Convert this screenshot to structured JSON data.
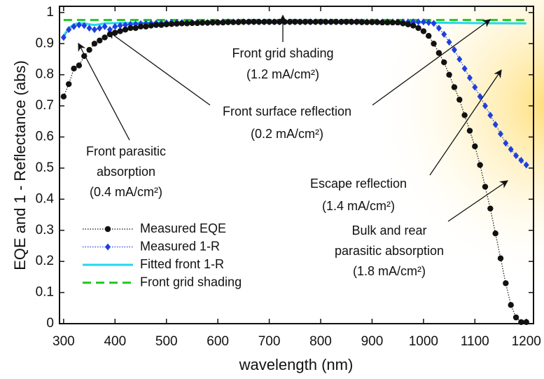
{
  "chart_data": {
    "type": "line",
    "xlabel": "wavelength (nm)",
    "ylabel": "EQE and 1 - Reflectance (abs)",
    "xlim": [
      292,
      1214
    ],
    "ylim": [
      0,
      1.02
    ],
    "xticks": [
      300,
      400,
      500,
      600,
      700,
      800,
      900,
      1000,
      1100,
      1200
    ],
    "yticks": [
      0,
      0.1,
      0.2,
      0.3,
      0.4,
      0.5,
      0.6,
      0.7,
      0.8,
      0.9,
      1
    ],
    "grid": false,
    "legend": "lower left",
    "series": [
      {
        "name": "Measured EQE",
        "color": "#111111",
        "marker": "circle",
        "line_style": "dotted",
        "x": [
          300,
          310,
          320,
          330,
          340,
          350,
          360,
          370,
          380,
          390,
          400,
          410,
          420,
          430,
          440,
          450,
          460,
          470,
          480,
          490,
          500,
          510,
          520,
          530,
          540,
          550,
          560,
          570,
          580,
          590,
          600,
          610,
          620,
          630,
          640,
          650,
          660,
          670,
          680,
          690,
          700,
          710,
          720,
          730,
          740,
          750,
          760,
          770,
          780,
          790,
          800,
          810,
          820,
          830,
          840,
          850,
          860,
          870,
          880,
          890,
          900,
          910,
          920,
          930,
          940,
          950,
          960,
          970,
          980,
          990,
          1000,
          1010,
          1020,
          1030,
          1040,
          1050,
          1060,
          1070,
          1080,
          1090,
          1100,
          1110,
          1120,
          1130,
          1140,
          1150,
          1160,
          1170,
          1180,
          1190,
          1200
        ],
        "values": [
          0.73,
          0.77,
          0.82,
          0.83,
          0.86,
          0.88,
          0.9,
          0.91,
          0.92,
          0.93,
          0.935,
          0.94,
          0.945,
          0.95,
          0.95,
          0.955,
          0.955,
          0.958,
          0.96,
          0.96,
          0.962,
          0.963,
          0.964,
          0.965,
          0.965,
          0.966,
          0.966,
          0.967,
          0.967,
          0.968,
          0.968,
          0.968,
          0.969,
          0.969,
          0.969,
          0.97,
          0.97,
          0.97,
          0.97,
          0.97,
          0.97,
          0.97,
          0.97,
          0.97,
          0.97,
          0.97,
          0.97,
          0.97,
          0.97,
          0.97,
          0.97,
          0.97,
          0.97,
          0.97,
          0.97,
          0.97,
          0.97,
          0.97,
          0.969,
          0.969,
          0.969,
          0.969,
          0.968,
          0.968,
          0.968,
          0.968,
          0.965,
          0.962,
          0.958,
          0.95,
          0.94,
          0.925,
          0.9,
          0.87,
          0.84,
          0.8,
          0.76,
          0.72,
          0.67,
          0.62,
          0.57,
          0.51,
          0.44,
          0.37,
          0.29,
          0.21,
          0.13,
          0.06,
          0.02,
          0.005,
          0.005
        ]
      },
      {
        "name": "Measured 1-R",
        "color": "#1f3fe0",
        "marker": "diamond",
        "line_style": "dotted",
        "x": [
          300,
          310,
          320,
          330,
          340,
          350,
          360,
          370,
          380,
          390,
          400,
          410,
          420,
          430,
          440,
          450,
          460,
          470,
          480,
          490,
          500,
          510,
          520,
          530,
          540,
          550,
          560,
          570,
          580,
          590,
          600,
          610,
          620,
          630,
          640,
          650,
          660,
          670,
          680,
          690,
          700,
          710,
          720,
          730,
          740,
          750,
          760,
          770,
          780,
          790,
          800,
          810,
          820,
          830,
          840,
          850,
          860,
          870,
          880,
          890,
          900,
          910,
          920,
          930,
          940,
          950,
          960,
          970,
          980,
          990,
          1000,
          1010,
          1020,
          1030,
          1040,
          1050,
          1060,
          1070,
          1080,
          1090,
          1100,
          1110,
          1120,
          1130,
          1140,
          1150,
          1160,
          1170,
          1180,
          1190,
          1200
        ],
        "values": [
          0.92,
          0.945,
          0.955,
          0.96,
          0.958,
          0.95,
          0.945,
          0.95,
          0.955,
          0.945,
          0.955,
          0.958,
          0.96,
          0.962,
          0.963,
          0.964,
          0.965,
          0.965,
          0.966,
          0.966,
          0.967,
          0.968,
          0.968,
          0.968,
          0.968,
          0.968,
          0.968,
          0.968,
          0.968,
          0.968,
          0.968,
          0.97,
          0.97,
          0.97,
          0.97,
          0.97,
          0.97,
          0.97,
          0.97,
          0.97,
          0.97,
          0.97,
          0.97,
          0.97,
          0.97,
          0.97,
          0.97,
          0.97,
          0.97,
          0.97,
          0.97,
          0.97,
          0.97,
          0.97,
          0.97,
          0.97,
          0.97,
          0.97,
          0.97,
          0.97,
          0.97,
          0.97,
          0.97,
          0.97,
          0.97,
          0.97,
          0.97,
          0.97,
          0.97,
          0.97,
          0.97,
          0.968,
          0.965,
          0.95,
          0.93,
          0.905,
          0.88,
          0.85,
          0.82,
          0.79,
          0.76,
          0.73,
          0.7,
          0.67,
          0.64,
          0.61,
          0.58,
          0.56,
          0.54,
          0.525,
          0.51
        ]
      },
      {
        "name": "Fitted front 1-R",
        "color": "#22d8f0",
        "marker": null,
        "line_style": "solid",
        "x": [
          300,
          310,
          320,
          330,
          340,
          350,
          360,
          370,
          380,
          400,
          500,
          600,
          700,
          800,
          900,
          1000,
          1100,
          1200
        ],
        "values": [
          0.925,
          0.95,
          0.962,
          0.966,
          0.965,
          0.962,
          0.96,
          0.962,
          0.965,
          0.966,
          0.968,
          0.97,
          0.97,
          0.97,
          0.97,
          0.968,
          0.966,
          0.965
        ]
      },
      {
        "name": "Front grid shading",
        "color": "#22cc22",
        "marker": null,
        "line_style": "dashed",
        "x": [
          300,
          1200
        ],
        "values": [
          0.976,
          0.976
        ]
      }
    ],
    "annotations": [
      {
        "lines": [
          "Front grid shading",
          "(1.2 mA/cm²)"
        ]
      },
      {
        "lines": [
          "Front surface reflection",
          "(0.2 mA/cm²)"
        ]
      },
      {
        "lines": [
          "Front parasitic",
          "absorption",
          "(0.4 mA/cm²)"
        ]
      },
      {
        "lines": [
          "Escape reflection",
          "(1.4 mA/cm²)"
        ]
      },
      {
        "lines": [
          "Bulk and rear",
          "parasitic absorption",
          "(1.8 mA/cm²)"
        ]
      }
    ]
  }
}
